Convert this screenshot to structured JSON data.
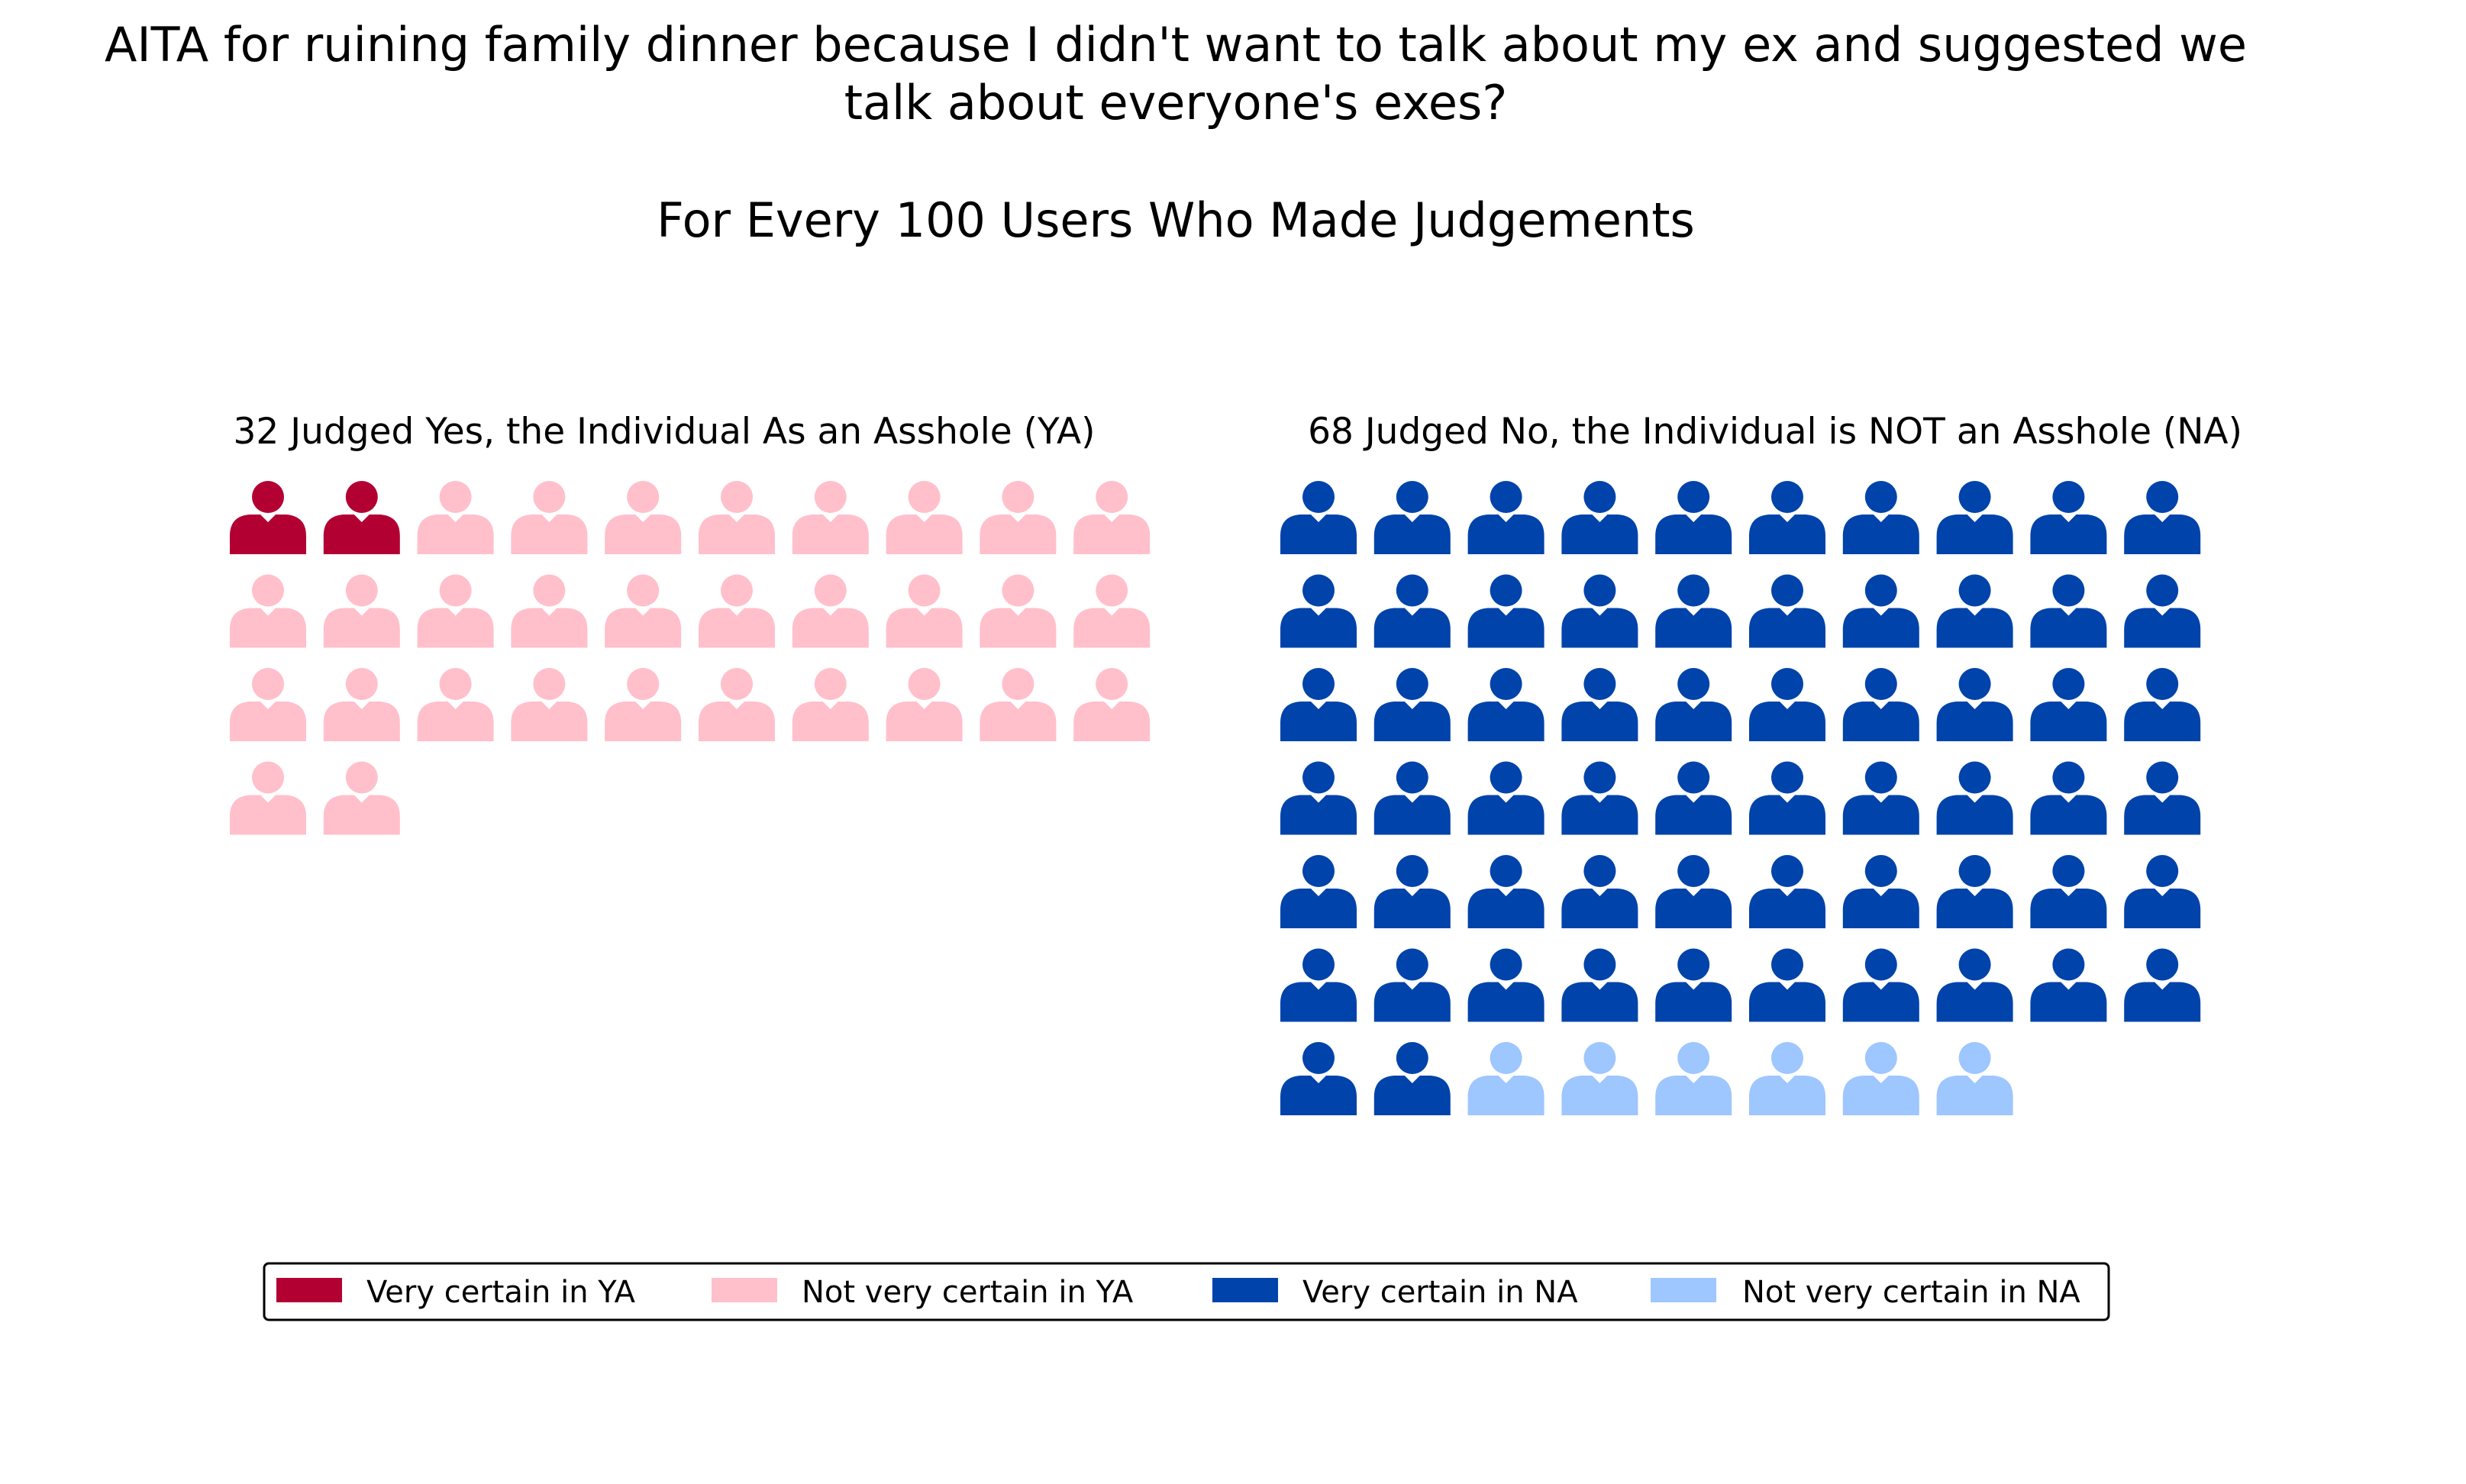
{
  "chart_data": {
    "type": "waffle",
    "title_lines": [
      "AITA for ruining family dinner because I didn't want to talk about my ex and suggested we",
      "talk about everyone's exes?"
    ],
    "subtitle": "For Every 100 Users Who Made Judgements",
    "total": 100,
    "icon": "person-icon",
    "panels": [
      {
        "title": "32 Judged Yes, the Individual As an Asshole (YA)",
        "count": 32,
        "grid_columns": 10,
        "segments": [
          {
            "name": "Very certain in YA",
            "count": 2,
            "color": "#b30033"
          },
          {
            "name": "Not very certain in YA",
            "count": 30,
            "color": "#ffc0cb"
          }
        ]
      },
      {
        "title": "68 Judged No, the Individual is NOT an Asshole (NA)",
        "count": 68,
        "grid_columns": 10,
        "segments": [
          {
            "name": "Very certain in NA",
            "count": 62,
            "color": "#0043aa"
          },
          {
            "name": "Not very certain in NA",
            "count": 6,
            "color": "#9ec6ff"
          }
        ]
      }
    ],
    "legend": {
      "placement": "bottom-center",
      "entries": [
        {
          "label": "Very certain in YA",
          "color": "#b30033"
        },
        {
          "label": "Not very certain in YA",
          "color": "#ffc0cb"
        },
        {
          "label": "Very certain in NA",
          "color": "#0043aa"
        },
        {
          "label": "Not very certain in NA",
          "color": "#9ec6ff"
        }
      ]
    }
  }
}
